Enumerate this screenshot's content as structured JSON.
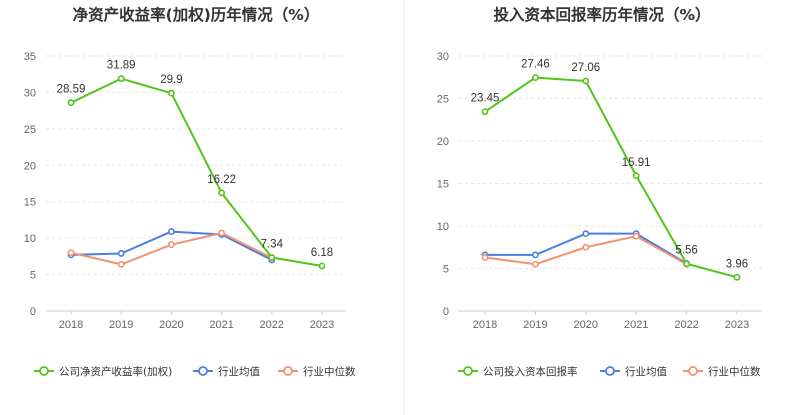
{
  "chart_data": [
    {
      "type": "line",
      "title": "净资产收益率(加权)历年情况（%）",
      "categories": [
        "2018",
        "2019",
        "2020",
        "2021",
        "2022",
        "2023"
      ],
      "yticks": [
        "0",
        "5",
        "10",
        "15",
        "20",
        "25",
        "30",
        "35"
      ],
      "ylim": [
        0,
        35
      ],
      "grid": true,
      "legend_position": "bottom",
      "series": [
        {
          "name": "公司净资产收益率(加权)",
          "color": "#52c41a",
          "values": [
            28.59,
            31.89,
            29.9,
            16.22,
            7.34,
            6.18
          ],
          "labels": [
            "28.59",
            "31.89",
            "29.9",
            "16.22",
            "7.34",
            "6.18"
          ]
        },
        {
          "name": "行业均值",
          "color": "#4a7fe0",
          "values": [
            7.7,
            7.9,
            10.9,
            10.5,
            7.0,
            null
          ]
        },
        {
          "name": "行业中位数",
          "color": "#f4926c",
          "values": [
            8.0,
            6.4,
            9.1,
            10.7,
            7.3,
            null
          ]
        }
      ]
    },
    {
      "type": "line",
      "title": "投入资本回报率历年情况（%）",
      "categories": [
        "2018",
        "2019",
        "2020",
        "2021",
        "2022",
        "2023"
      ],
      "yticks": [
        "0",
        "5",
        "10",
        "15",
        "20",
        "25",
        "30"
      ],
      "ylim": [
        0,
        30
      ],
      "grid": true,
      "legend_position": "bottom",
      "series": [
        {
          "name": "公司投入资本回报率",
          "color": "#52c41a",
          "values": [
            23.45,
            27.46,
            27.06,
            15.91,
            5.56,
            3.96
          ],
          "labels": [
            "23.45",
            "27.46",
            "27.06",
            "15.91",
            "5.56",
            "3.96"
          ]
        },
        {
          "name": "行业均值",
          "color": "#4a7fe0",
          "values": [
            6.6,
            6.6,
            9.1,
            9.1,
            5.6,
            null
          ]
        },
        {
          "name": "行业中位数",
          "color": "#f4926c",
          "values": [
            6.3,
            5.5,
            7.5,
            8.8,
            5.5,
            null
          ]
        }
      ]
    }
  ]
}
